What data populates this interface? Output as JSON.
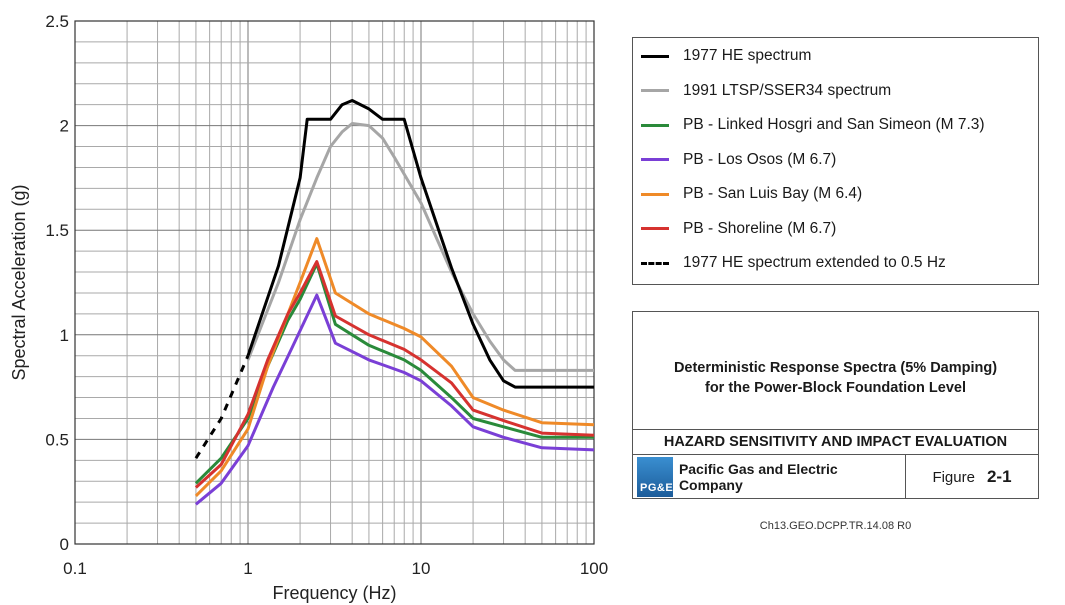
{
  "chart_data": {
    "type": "line",
    "title": "",
    "xlabel": "Frequency (Hz)",
    "ylabel": "Spectral Acceleration (g)",
    "x_scale": "log",
    "xlim": [
      0.1,
      100
    ],
    "ylim": [
      0,
      2.5
    ],
    "x_ticks": [
      0.1,
      1,
      10,
      100
    ],
    "x_tick_labels": [
      "0.1",
      "1",
      "10",
      "100"
    ],
    "y_ticks": [
      0,
      0.5,
      1,
      1.5,
      2,
      2.5
    ],
    "y_tick_labels": [
      "0",
      "0.5",
      "1",
      "1.5",
      "2",
      "2.5"
    ],
    "grid": true,
    "legend_position": "right",
    "series": [
      {
        "name": "1977 HE spectrum",
        "color": "#000000",
        "style": "solid",
        "points": [
          [
            1,
            0.9
          ],
          [
            1.5,
            1.33
          ],
          [
            2,
            1.75
          ],
          [
            2.2,
            2.03
          ],
          [
            3,
            2.03
          ],
          [
            3.5,
            2.1
          ],
          [
            4,
            2.12
          ],
          [
            5,
            2.08
          ],
          [
            6,
            2.03
          ],
          [
            8,
            2.03
          ],
          [
            10,
            1.75
          ],
          [
            15,
            1.32
          ],
          [
            20,
            1.05
          ],
          [
            25,
            0.88
          ],
          [
            30,
            0.78
          ],
          [
            35,
            0.75
          ],
          [
            100,
            0.75
          ]
        ]
      },
      {
        "name": "1991 LTSP/SSER34 spectrum",
        "color": "#a6a6a6",
        "style": "solid",
        "points": [
          [
            1,
            0.88
          ],
          [
            1.5,
            1.25
          ],
          [
            2,
            1.55
          ],
          [
            2.5,
            1.75
          ],
          [
            3,
            1.9
          ],
          [
            3.5,
            1.97
          ],
          [
            4,
            2.01
          ],
          [
            5,
            2.0
          ],
          [
            6,
            1.94
          ],
          [
            7,
            1.85
          ],
          [
            10,
            1.63
          ],
          [
            15,
            1.3
          ],
          [
            20,
            1.1
          ],
          [
            25,
            0.97
          ],
          [
            30,
            0.88
          ],
          [
            35,
            0.83
          ],
          [
            100,
            0.83
          ]
        ]
      },
      {
        "name": "PB - Linked Hosgri and San Simeon (M 7.3)",
        "color": "#2a8a3a",
        "style": "solid",
        "points": [
          [
            0.5,
            0.29
          ],
          [
            0.7,
            0.41
          ],
          [
            1,
            0.6
          ],
          [
            1.3,
            0.85
          ],
          [
            1.7,
            1.07
          ],
          [
            2,
            1.17
          ],
          [
            2.5,
            1.34
          ],
          [
            3.2,
            1.05
          ],
          [
            5,
            0.95
          ],
          [
            8,
            0.88
          ],
          [
            10,
            0.83
          ],
          [
            15,
            0.7
          ],
          [
            20,
            0.6
          ],
          [
            30,
            0.56
          ],
          [
            50,
            0.51
          ],
          [
            100,
            0.51
          ]
        ]
      },
      {
        "name": "PB - Los Osos (M 6.7)",
        "color": "#7a3fd6",
        "style": "solid",
        "points": [
          [
            0.5,
            0.19
          ],
          [
            0.7,
            0.29
          ],
          [
            1,
            0.47
          ],
          [
            1.4,
            0.75
          ],
          [
            1.8,
            0.94
          ],
          [
            2,
            1.02
          ],
          [
            2.5,
            1.19
          ],
          [
            3.2,
            0.96
          ],
          [
            5,
            0.88
          ],
          [
            8,
            0.82
          ],
          [
            10,
            0.78
          ],
          [
            15,
            0.66
          ],
          [
            20,
            0.56
          ],
          [
            30,
            0.51
          ],
          [
            50,
            0.46
          ],
          [
            100,
            0.45
          ]
        ]
      },
      {
        "name": "PB - San Luis Bay (M 6.4)",
        "color": "#ef8a28",
        "style": "solid",
        "points": [
          [
            0.5,
            0.23
          ],
          [
            0.7,
            0.35
          ],
          [
            1,
            0.55
          ],
          [
            1.3,
            0.85
          ],
          [
            1.7,
            1.1
          ],
          [
            2,
            1.25
          ],
          [
            2.5,
            1.46
          ],
          [
            3.2,
            1.2
          ],
          [
            5,
            1.1
          ],
          [
            8,
            1.03
          ],
          [
            10,
            0.99
          ],
          [
            15,
            0.85
          ],
          [
            20,
            0.7
          ],
          [
            30,
            0.64
          ],
          [
            50,
            0.58
          ],
          [
            100,
            0.57
          ]
        ]
      },
      {
        "name": "PB - Shoreline (M 6.7)",
        "color": "#d6322f",
        "style": "solid",
        "points": [
          [
            0.5,
            0.27
          ],
          [
            0.7,
            0.38
          ],
          [
            1,
            0.62
          ],
          [
            1.3,
            0.88
          ],
          [
            1.7,
            1.1
          ],
          [
            2,
            1.2
          ],
          [
            2.5,
            1.35
          ],
          [
            3.2,
            1.09
          ],
          [
            5,
            1.0
          ],
          [
            8,
            0.93
          ],
          [
            10,
            0.88
          ],
          [
            15,
            0.77
          ],
          [
            20,
            0.64
          ],
          [
            30,
            0.59
          ],
          [
            50,
            0.53
          ],
          [
            100,
            0.52
          ]
        ]
      },
      {
        "name": "1977 HE spectrum extended to 0.5 Hz",
        "color": "#000000",
        "style": "dashed",
        "points": [
          [
            0.5,
            0.41
          ],
          [
            0.7,
            0.6
          ],
          [
            1,
            0.9
          ]
        ]
      }
    ]
  },
  "figure_box": {
    "title_line1": "Deterministic Response Spectra (5% Damping)",
    "title_line2": "for the Power-Block Foundation Level",
    "report_title": "HAZARD SENSITIVITY AND IMPACT EVALUATION",
    "company": "Pacific Gas and Electric Company",
    "logo_text": "PG&E",
    "figure_label": "Figure",
    "figure_number": "2-1",
    "logo_color": "#2f7fc4"
  },
  "document_id": "Ch13.GEO.DCPP.TR.14.08 R0"
}
